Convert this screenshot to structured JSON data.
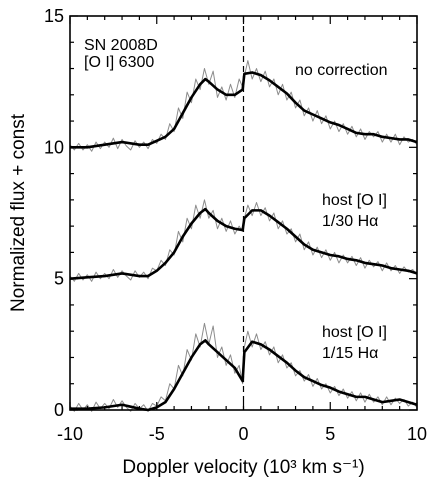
{
  "chart_data": {
    "type": "line",
    "xlabel": "Doppler velocity (10³ km s⁻¹)",
    "ylabel": "Normalized flux + const",
    "xlim": [
      -10,
      10
    ],
    "ylim": [
      0,
      15
    ],
    "xticks": [
      -10,
      -5,
      0,
      5,
      10
    ],
    "xtick_labels": [
      "-10",
      "-5",
      "0",
      "5",
      "10"
    ],
    "yticks": [
      0,
      5,
      10,
      15
    ],
    "ytick_labels": [
      "0",
      "5",
      "10",
      "15"
    ],
    "minor_xtick_step": 1,
    "minor_ytick_step": 1,
    "vline_x": 0,
    "vline_style": "dashed",
    "grid": false,
    "legend": "none",
    "annotations": [
      {
        "lines": [
          "SN 2008D",
          "[O I] 6300"
        ],
        "placement": "top-left"
      },
      {
        "lines": [
          "no correction"
        ],
        "placement": "beside upper spectrum"
      },
      {
        "lines": [
          "host [O I]",
          "1/30 Hα"
        ],
        "placement": "beside middle spectrum"
      },
      {
        "lines": [
          "host [O I]",
          "1/15 Hα"
        ],
        "placement": "beside lower spectrum"
      }
    ],
    "series": [
      {
        "role": "smoothed",
        "color": "#000000",
        "x": [
          -10,
          -9,
          -8,
          -7,
          -6,
          -5.5,
          -5,
          -4.5,
          -4,
          -3.5,
          -3,
          -2.5,
          -2.2,
          -2,
          -1.5,
          -1,
          -0.5,
          -0.05,
          0.05,
          0.5,
          1,
          1.5,
          2,
          2.5,
          3,
          3.5,
          4,
          4.5,
          5,
          5.5,
          6,
          6.5,
          7,
          7.5,
          8,
          8.5,
          9,
          9.5,
          10
        ],
        "values": [
          10.0,
          10.0,
          10.1,
          10.2,
          10.1,
          10.1,
          10.25,
          10.4,
          10.7,
          11.3,
          11.9,
          12.4,
          12.6,
          12.5,
          12.2,
          12.0,
          12.0,
          12.2,
          12.8,
          12.85,
          12.75,
          12.55,
          12.3,
          12.05,
          11.7,
          11.4,
          11.25,
          11.1,
          10.95,
          10.85,
          10.7,
          10.55,
          10.5,
          10.5,
          10.4,
          10.35,
          10.3,
          10.3,
          10.2
        ]
      },
      {
        "role": "smoothed",
        "color": "#000000",
        "x": [
          -10,
          -9,
          -8,
          -7,
          -6,
          -5.5,
          -5,
          -4.5,
          -4,
          -3.5,
          -3,
          -2.5,
          -2.2,
          -2,
          -1.5,
          -1,
          -0.5,
          -0.05,
          0.05,
          0.5,
          1,
          1.5,
          2,
          2.5,
          3,
          3.5,
          4,
          4.5,
          5,
          5.5,
          6,
          6.5,
          7,
          7.5,
          8,
          8.5,
          9,
          9.5,
          10
        ],
        "values": [
          5.0,
          5.05,
          5.1,
          5.2,
          5.1,
          5.1,
          5.3,
          5.6,
          6.0,
          6.6,
          7.1,
          7.5,
          7.65,
          7.5,
          7.2,
          7.0,
          6.9,
          6.85,
          7.3,
          7.6,
          7.6,
          7.4,
          7.15,
          6.9,
          6.6,
          6.3,
          6.1,
          6.0,
          5.9,
          5.85,
          5.75,
          5.7,
          5.6,
          5.55,
          5.5,
          5.4,
          5.35,
          5.3,
          5.2
        ]
      },
      {
        "role": "smoothed",
        "color": "#000000",
        "x": [
          -10,
          -9,
          -8,
          -7,
          -6,
          -5.5,
          -5,
          -4.5,
          -4,
          -3.5,
          -3,
          -2.5,
          -2.2,
          -2,
          -1.5,
          -1,
          -0.5,
          -0.05,
          0.05,
          0.5,
          1,
          1.5,
          2,
          2.5,
          3,
          3.5,
          4,
          4.5,
          5,
          5.5,
          6,
          6.5,
          7,
          7.5,
          8,
          8.5,
          9,
          9.5,
          10
        ],
        "values": [
          0.05,
          0.05,
          0.1,
          0.2,
          0.05,
          0.0,
          0.1,
          0.3,
          0.8,
          1.4,
          2.0,
          2.5,
          2.65,
          2.5,
          2.2,
          1.9,
          1.6,
          1.1,
          2.2,
          2.6,
          2.5,
          2.3,
          2.05,
          1.8,
          1.5,
          1.25,
          1.1,
          0.95,
          0.85,
          0.7,
          0.6,
          0.5,
          0.5,
          0.4,
          0.3,
          0.35,
          0.4,
          0.3,
          0.2
        ]
      },
      {
        "role": "raw",
        "color": "#8c8c8c",
        "x": [
          -10,
          -9.75,
          -9.5,
          -9.25,
          -9,
          -8.75,
          -8.5,
          -8.25,
          -8,
          -7.75,
          -7.5,
          -7.25,
          -7,
          -6.75,
          -6.5,
          -6.25,
          -6,
          -5.75,
          -5.5,
          -5.25,
          -5,
          -4.75,
          -4.5,
          -4.25,
          -4,
          -3.75,
          -3.5,
          -3.25,
          -3,
          -2.75,
          -2.5,
          -2.25,
          -2,
          -1.75,
          -1.5,
          -1.25,
          -1,
          -0.75,
          -0.5,
          -0.25,
          -0.05,
          0.05,
          0.25,
          0.5,
          0.75,
          1,
          1.25,
          1.5,
          1.75,
          2,
          2.25,
          2.5,
          2.75,
          3,
          3.25,
          3.5,
          3.75,
          4,
          4.25,
          4.5,
          4.75,
          5,
          5.25,
          5.5,
          5.75,
          6,
          6.25,
          6.5,
          6.75,
          7,
          7.25,
          7.5,
          7.75,
          8,
          8.25,
          8.5,
          8.75,
          9,
          9.25,
          9.5,
          9.75,
          10
        ],
        "values": [
          10.1,
          9.9,
          10.15,
          9.9,
          10.1,
          9.85,
          10.2,
          9.95,
          10.2,
          10.0,
          10.35,
          9.95,
          10.3,
          10.05,
          9.9,
          10.25,
          10.0,
          10.2,
          9.95,
          10.3,
          10.15,
          10.5,
          10.3,
          10.9,
          10.6,
          11.5,
          11.1,
          12.1,
          11.7,
          12.6,
          12.2,
          13.0,
          12.4,
          12.9,
          11.9,
          12.3,
          11.8,
          12.4,
          11.9,
          12.6,
          12.3,
          12.7,
          13.3,
          12.6,
          13.0,
          12.5,
          12.9,
          12.3,
          12.6,
          12.0,
          12.4,
          11.8,
          12.1,
          11.5,
          11.8,
          11.2,
          11.5,
          11.0,
          11.4,
          10.9,
          11.2,
          10.7,
          11.0,
          10.6,
          10.9,
          10.5,
          10.8,
          10.4,
          10.7,
          10.3,
          10.6,
          10.4,
          10.6,
          10.2,
          10.5,
          10.2,
          10.5,
          10.1,
          10.4,
          10.2,
          10.3,
          10.1
        ]
      },
      {
        "role": "raw",
        "color": "#8c8c8c",
        "x": [
          -10,
          -9.75,
          -9.5,
          -9.25,
          -9,
          -8.75,
          -8.5,
          -8.25,
          -8,
          -7.75,
          -7.5,
          -7.25,
          -7,
          -6.75,
          -6.5,
          -6.25,
          -6,
          -5.75,
          -5.5,
          -5.25,
          -5,
          -4.75,
          -4.5,
          -4.25,
          -4,
          -3.75,
          -3.5,
          -3.25,
          -3,
          -2.75,
          -2.5,
          -2.25,
          -2,
          -1.75,
          -1.5,
          -1.25,
          -1,
          -0.75,
          -0.5,
          -0.25,
          -0.05,
          0.05,
          0.25,
          0.5,
          0.75,
          1,
          1.25,
          1.5,
          1.75,
          2,
          2.25,
          2.5,
          2.75,
          3,
          3.25,
          3.5,
          3.75,
          4,
          4.25,
          4.5,
          4.75,
          5,
          5.25,
          5.5,
          5.75,
          6,
          6.25,
          6.5,
          6.75,
          7,
          7.25,
          7.5,
          7.75,
          8,
          8.25,
          8.5,
          8.75,
          9,
          9.25,
          9.5,
          9.75,
          10
        ],
        "values": [
          5.1,
          4.9,
          5.2,
          4.95,
          5.15,
          4.9,
          5.25,
          5.0,
          5.2,
          5.0,
          5.35,
          5.05,
          5.3,
          5.1,
          4.95,
          5.3,
          5.05,
          5.25,
          5.0,
          5.4,
          5.3,
          5.7,
          5.5,
          6.1,
          5.9,
          6.8,
          6.4,
          7.3,
          6.9,
          7.8,
          7.3,
          8.0,
          7.3,
          7.6,
          6.9,
          7.3,
          6.8,
          7.2,
          6.7,
          7.0,
          6.8,
          7.3,
          7.8,
          7.4,
          7.9,
          7.4,
          7.7,
          7.2,
          7.5,
          6.9,
          7.2,
          6.7,
          6.9,
          6.4,
          6.7,
          6.1,
          6.4,
          5.9,
          6.2,
          5.8,
          6.1,
          5.7,
          6.0,
          5.6,
          5.9,
          5.6,
          5.85,
          5.5,
          5.8,
          5.4,
          5.7,
          5.45,
          5.65,
          5.3,
          5.6,
          5.3,
          5.5,
          5.2,
          5.45,
          5.25,
          5.35,
          5.15
        ]
      },
      {
        "role": "raw",
        "color": "#8c8c8c",
        "x": [
          -10,
          -9.75,
          -9.5,
          -9.25,
          -9,
          -8.75,
          -8.5,
          -8.25,
          -8,
          -7.75,
          -7.5,
          -7.25,
          -7,
          -6.75,
          -6.5,
          -6.25,
          -6,
          -5.75,
          -5.5,
          -5.25,
          -5,
          -4.75,
          -4.5,
          -4.25,
          -4,
          -3.75,
          -3.5,
          -3.25,
          -3,
          -2.75,
          -2.5,
          -2.25,
          -2,
          -1.75,
          -1.5,
          -1.25,
          -1,
          -0.75,
          -0.5,
          -0.25,
          -0.05,
          0.05,
          0.25,
          0.5,
          0.75,
          1,
          1.25,
          1.5,
          1.75,
          2,
          2.25,
          2.5,
          2.75,
          3,
          3.25,
          3.5,
          3.75,
          4,
          4.25,
          4.5,
          4.75,
          5,
          5.25,
          5.5,
          5.75,
          6,
          6.25,
          6.5,
          6.75,
          7,
          7.25,
          7.5,
          7.75,
          8,
          8.25,
          8.5,
          8.75,
          9,
          9.25,
          9.5,
          9.75,
          10
        ],
        "values": [
          0.15,
          -0.05,
          0.25,
          0.0,
          0.2,
          -0.05,
          0.3,
          0.05,
          0.25,
          0.05,
          0.4,
          0.1,
          0.35,
          0.1,
          -0.05,
          0.25,
          0.05,
          0.2,
          -0.05,
          0.25,
          0.15,
          0.5,
          0.35,
          1.0,
          0.8,
          1.7,
          1.3,
          2.3,
          1.9,
          2.9,
          2.4,
          3.3,
          2.5,
          3.2,
          2.0,
          2.4,
          1.7,
          2.1,
          1.4,
          1.7,
          1.0,
          2.4,
          3.0,
          2.4,
          2.9,
          2.3,
          2.6,
          2.1,
          2.4,
          1.8,
          2.1,
          1.6,
          1.8,
          1.3,
          1.5,
          1.1,
          1.35,
          0.9,
          1.2,
          0.8,
          1.0,
          0.65,
          0.9,
          0.55,
          0.8,
          0.45,
          0.7,
          0.35,
          0.65,
          0.3,
          0.6,
          0.3,
          0.5,
          0.2,
          0.5,
          0.2,
          0.45,
          0.25,
          0.4,
          0.15,
          0.3,
          0.1
        ]
      }
    ]
  }
}
